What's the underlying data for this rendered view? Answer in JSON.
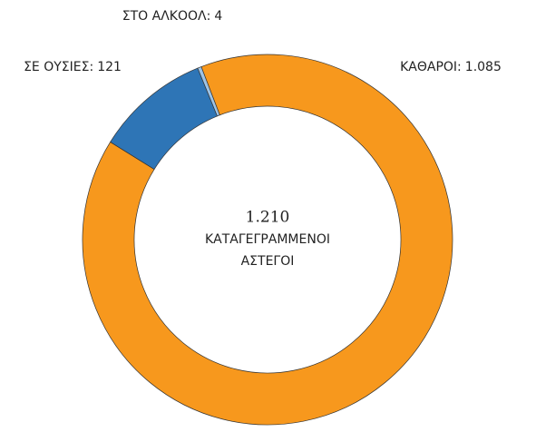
{
  "chart_data": {
    "type": "donut",
    "categories": [
      "ΚΑΘΑΡΟΙ:",
      "ΣΕ ΟΥΣΙΕΣ:",
      "ΣΤΟ ΑΛΚΟΟΛ:"
    ],
    "values": [
      1085,
      121,
      4
    ],
    "value_labels": [
      "1.085",
      "121",
      "4"
    ],
    "colors": [
      "#f7981d",
      "#2e75b6",
      "#9dc3e6"
    ],
    "center_text": [
      "1.210",
      "ΚΑΤΑΓΕΓΡΑΜΜΕΝΟΙ",
      "ΑΣΤΕΓΟΙ"
    ]
  }
}
